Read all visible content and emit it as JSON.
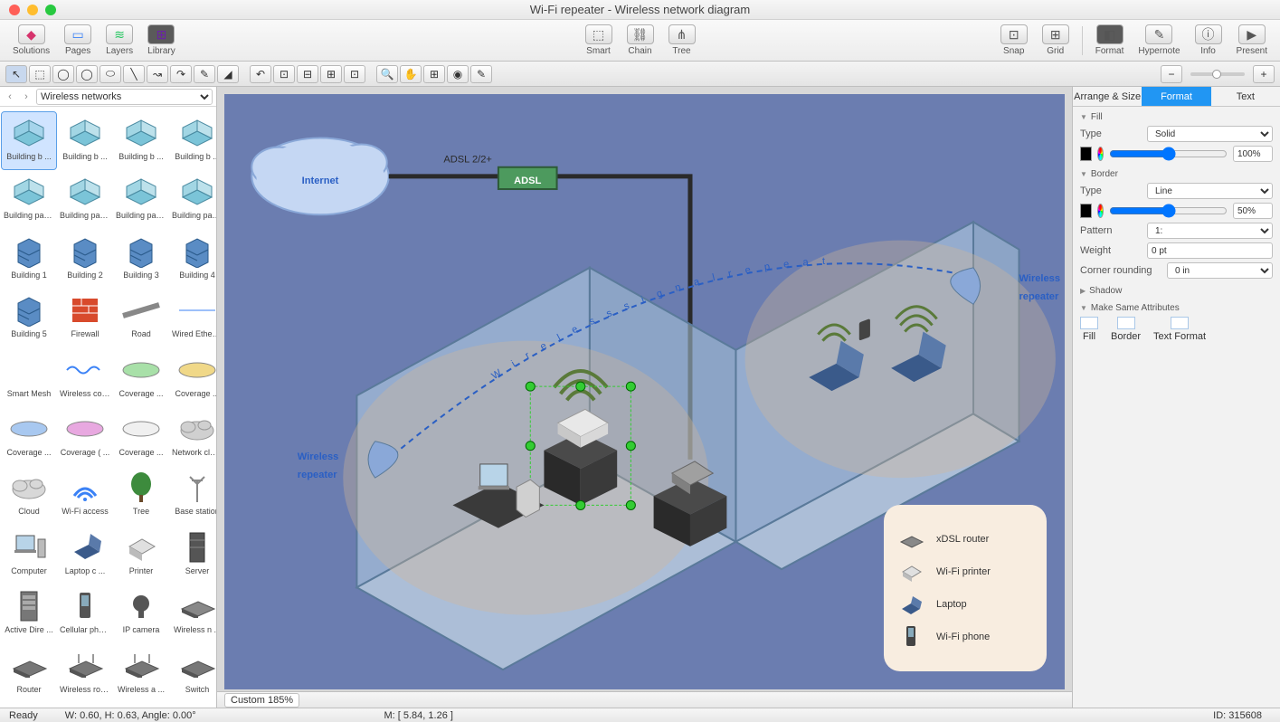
{
  "window": {
    "title": "Wi-Fi repeater - Wireless network diagram"
  },
  "toolbar": {
    "left": [
      {
        "name": "solutions",
        "label": "Solutions",
        "glyph": "◆",
        "color": "#d6336c"
      },
      {
        "name": "pages",
        "label": "Pages",
        "glyph": "▭",
        "color": "#3b82f6"
      },
      {
        "name": "layers",
        "label": "Layers",
        "glyph": "≋",
        "color": "#22c55e"
      },
      {
        "name": "library",
        "label": "Library",
        "glyph": "⊞",
        "color": "#6b21a8",
        "active": true
      }
    ],
    "center": [
      {
        "name": "smart",
        "label": "Smart",
        "glyph": "⬚"
      },
      {
        "name": "chain",
        "label": "Chain",
        "glyph": "⛓"
      },
      {
        "name": "tree",
        "label": "Tree",
        "glyph": "⋔"
      }
    ],
    "right1": [
      {
        "name": "snap",
        "label": "Snap",
        "glyph": "⊡"
      },
      {
        "name": "grid",
        "label": "Grid",
        "glyph": "⊞"
      }
    ],
    "right2": [
      {
        "name": "format",
        "label": "Format",
        "glyph": "◧",
        "active": true
      },
      {
        "name": "hypernote",
        "label": "Hypernote",
        "glyph": "✎"
      },
      {
        "name": "info",
        "label": "Info",
        "glyph": "ⓘ"
      },
      {
        "name": "present",
        "label": "Present",
        "glyph": "▶"
      }
    ]
  },
  "tooltoolbar": {
    "tools": [
      "↖",
      "⬚",
      "◯",
      "◯",
      "⬭",
      "╲",
      "↝",
      "↷",
      "✎",
      "◢"
    ],
    "edit": [
      "↶",
      "⊡",
      "⊟",
      "⊞",
      "⊡"
    ],
    "view": [
      "🔍",
      "✋",
      "⊞",
      "◉",
      "✎"
    ],
    "zoom": [
      "−",
      "+"
    ]
  },
  "sidebar": {
    "nav": {
      "back": "‹",
      "fwd": "›"
    },
    "library": "Wireless networks",
    "shapes": [
      {
        "label": "Building b ...",
        "type": "iso-box",
        "c": "#7bc4d8",
        "sel": true
      },
      {
        "label": "Building b ...",
        "type": "iso-box",
        "c": "#7bc4d8"
      },
      {
        "label": "Building b ...",
        "type": "iso-box",
        "c": "#7bc4d8"
      },
      {
        "label": "Building b ...",
        "type": "iso-box",
        "c": "#7bc4d8"
      },
      {
        "label": "Building part 1",
        "type": "iso-box",
        "c": "#7bc4d8"
      },
      {
        "label": "Building part 2",
        "type": "iso-box",
        "c": "#7bc4d8"
      },
      {
        "label": "Building part 3",
        "type": "iso-box",
        "c": "#7bc4d8"
      },
      {
        "label": "Building part 4",
        "type": "iso-box",
        "c": "#7bc4d8"
      },
      {
        "label": "Building 1",
        "type": "building",
        "c": "#5a8cc4"
      },
      {
        "label": "Building 2",
        "type": "building",
        "c": "#5a8cc4"
      },
      {
        "label": "Building 3",
        "type": "building",
        "c": "#5a8cc4"
      },
      {
        "label": "Building 4",
        "type": "building",
        "c": "#5a8cc4"
      },
      {
        "label": "Building 5",
        "type": "building",
        "c": "#5a8cc4"
      },
      {
        "label": "Firewall",
        "type": "firewall",
        "c": "#d84a2c"
      },
      {
        "label": "Road",
        "type": "road",
        "c": "#888"
      },
      {
        "label": "Wired Ethernet",
        "type": "line",
        "c": "#3b82f6"
      },
      {
        "label": "Smart Mesh",
        "type": "blank",
        "c": "#fff"
      },
      {
        "label": "Wireless co ...",
        "type": "wave",
        "c": "#3b82f6"
      },
      {
        "label": "Coverage ...",
        "type": "ellipse",
        "c": "#a8e0a8"
      },
      {
        "label": "Coverage ...",
        "type": "ellipse",
        "c": "#f0d888"
      },
      {
        "label": "Coverage ...",
        "type": "ellipse",
        "c": "#a8c8f0"
      },
      {
        "label": "Coverage ( ...",
        "type": "ellipse",
        "c": "#e8a8e0"
      },
      {
        "label": "Coverage ...",
        "type": "ellipse",
        "c": "#f0f0f0"
      },
      {
        "label": "Network cloud",
        "type": "cloud",
        "c": "#d0d0d0"
      },
      {
        "label": "Cloud",
        "type": "cloud",
        "c": "#d8d8d8"
      },
      {
        "label": "Wi-Fi access",
        "type": "wifi",
        "c": "#3b82f6"
      },
      {
        "label": "Tree",
        "type": "tree",
        "c": "#3d8b3d"
      },
      {
        "label": "Base station",
        "type": "antenna",
        "c": "#888"
      },
      {
        "label": "Computer",
        "type": "pc",
        "c": "#888"
      },
      {
        "label": "Laptop c ...",
        "type": "laptop",
        "c": "#555"
      },
      {
        "label": "Printer",
        "type": "printer",
        "c": "#999"
      },
      {
        "label": "Server",
        "type": "server",
        "c": "#555"
      },
      {
        "label": "Active Dire ...",
        "type": "rack",
        "c": "#777"
      },
      {
        "label": "Cellular phone",
        "type": "phone",
        "c": "#555"
      },
      {
        "label": "IP camera",
        "type": "camera",
        "c": "#555"
      },
      {
        "label": "Wireless n ...",
        "type": "device",
        "c": "#888"
      },
      {
        "label": "Router",
        "type": "router",
        "c": "#777"
      },
      {
        "label": "Wireless router",
        "type": "wrouter",
        "c": "#777"
      },
      {
        "label": "Wireless a ...",
        "type": "wap",
        "c": "#777"
      },
      {
        "label": "Switch",
        "type": "switch",
        "c": "#777"
      }
    ]
  },
  "canvas": {
    "bg": "#6b7db0",
    "labels": {
      "adsl_line": "ADSL 2/2+",
      "adsl_box": "ADSL",
      "internet": "Internet",
      "signal": "W i r e l e s s   s i g n a l   r e p e a t",
      "repeater_left": "Wireless repeater",
      "repeater_right": "Wireless repeater"
    },
    "legend": [
      {
        "label": "xDSL router",
        "icon": "router"
      },
      {
        "label": "Wi-Fi printer",
        "icon": "printer"
      },
      {
        "label": "Laptop",
        "icon": "laptop"
      },
      {
        "label": "Wi-Fi phone",
        "icon": "phone"
      }
    ],
    "zoom": "Custom 185%",
    "room_color": "#b8d4e8",
    "signal_area": "#d4b896",
    "wifi_color": "#5a7a3a",
    "wire_color": "#2a2a2a"
  },
  "props": {
    "tabs": [
      "Arrange & Size",
      "Format",
      "Text"
    ],
    "active_tab": 1,
    "fill": {
      "title": "Fill",
      "type_label": "Type",
      "type": "Solid",
      "opacity": "100%",
      "color": "#000000"
    },
    "border": {
      "title": "Border",
      "type_label": "Type",
      "type": "Line",
      "opacity": "50%",
      "color": "#000000",
      "pattern_label": "Pattern",
      "pattern": "1:",
      "weight_label": "Weight",
      "weight": "0 pt",
      "corner_label": "Corner rounding",
      "corner": "0 in"
    },
    "shadow": {
      "title": "Shadow"
    },
    "msa": {
      "title": "Make Same Attributes",
      "items": [
        "Fill",
        "Border",
        "Text Format"
      ]
    }
  },
  "status": {
    "ready": "Ready",
    "wh": "W: 0.60,  H: 0.63,  Angle: 0.00°",
    "m": "M: [ 5.84, 1.26 ]",
    "id": "ID: 315608"
  }
}
